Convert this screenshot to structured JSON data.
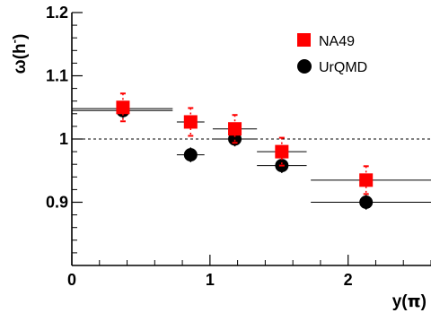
{
  "chart_data": {
    "type": "scatter",
    "xlabel_main": "y(",
    "xlabel_sym": "π",
    "xlabel_end": ")",
    "ylabel_main": "ω(h",
    "ylabel_sup": "-",
    "ylabel_end": ")",
    "xlim": [
      0,
      2.6
    ],
    "ylim": [
      0.8,
      1.2
    ],
    "xticks": [
      "0",
      "1",
      "2"
    ],
    "yticks": [
      "0.9",
      "1",
      "1.1",
      "1.2"
    ],
    "reference_line": 1.0,
    "legend_position": "top-right",
    "series": [
      {
        "name": "NA49",
        "color": "#ff0000",
        "marker": "square",
        "points": [
          {
            "x": 0.37,
            "y": 1.05,
            "xerr": [
              0.0,
              0.0
            ],
            "yerr": 0.022
          },
          {
            "x": 0.86,
            "y": 1.027,
            "xerr": [
              0.0,
              0.0
            ],
            "yerr": 0.022
          },
          {
            "x": 1.18,
            "y": 1.016,
            "xerr": [
              0.0,
              0.0
            ],
            "yerr": 0.022
          },
          {
            "x": 1.52,
            "y": 0.98,
            "xerr": [
              0.0,
              0.0
            ],
            "yerr": 0.022
          },
          {
            "x": 2.13,
            "y": 0.935,
            "xerr": [
              0.0,
              0.0
            ],
            "yerr": 0.022
          }
        ]
      },
      {
        "name": "UrQMD",
        "color": "#000000",
        "marker": "circle",
        "points": [
          {
            "x": 0.37,
            "y": 1.045,
            "xerr": [
              0.37,
              0.36
            ],
            "yerr": 0.006
          },
          {
            "x": 0.86,
            "y": 0.975,
            "xerr": [
              0.1,
              0.1
            ],
            "yerr": 0.006
          },
          {
            "x": 1.18,
            "y": 1.0,
            "xerr": [
              0.16,
              0.16
            ],
            "yerr": 0.006
          },
          {
            "x": 1.52,
            "y": 0.958,
            "xerr": [
              0.18,
              0.18
            ],
            "yerr": 0.006
          },
          {
            "x": 2.13,
            "y": 0.9,
            "xerr": [
              0.4,
              0.47
            ],
            "yerr": 0.006
          }
        ]
      }
    ],
    "na49_hbars": [
      {
        "x": 0.37,
        "y": 1.048,
        "xerr": [
          0.37,
          0.36
        ]
      },
      {
        "x": 0.86,
        "y": 1.027,
        "xerr": [
          0.1,
          0.1
        ]
      },
      {
        "x": 1.18,
        "y": 1.016,
        "xerr": [
          0.16,
          0.16
        ]
      },
      {
        "x": 1.52,
        "y": 0.98,
        "xerr": [
          0.18,
          0.18
        ]
      },
      {
        "x": 2.13,
        "y": 0.935,
        "xerr": [
          0.4,
          0.47
        ]
      }
    ]
  }
}
